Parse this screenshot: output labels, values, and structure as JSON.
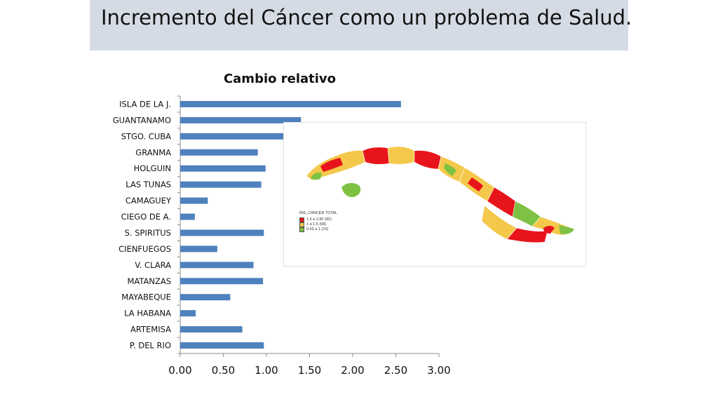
{
  "header": {
    "title": "Incremento del Cáncer como un problema de Salud."
  },
  "chart_data": {
    "type": "bar",
    "orientation": "horizontal",
    "title": "Cambio relativo",
    "xlabel": "",
    "ylabel": "",
    "xlim": [
      0,
      3
    ],
    "x_ticks": [
      "0.00",
      "0.50",
      "1.00",
      "1.50",
      "2.00",
      "2.50",
      "3.00"
    ],
    "grid": false,
    "bar_color": "#4f81bd",
    "categories": [
      "ISLA DE LA J.",
      "GUANTANAMO",
      "STGO. CUBA",
      "GRANMA",
      "HOLGUIN",
      "LAS TUNAS",
      "CAMAGUEY",
      "CIEGO DE A.",
      "S. SPIRITUS",
      "CIENFUEGOS",
      "V. CLARA",
      "MATANZAS",
      "MAYABEQUE",
      "LA HABANA",
      "ARTEMISA",
      "P. DEL RIO"
    ],
    "values": [
      2.56,
      1.4,
      1.25,
      0.9,
      0.99,
      0.94,
      0.32,
      0.17,
      0.97,
      0.43,
      0.85,
      0.96,
      0.58,
      0.18,
      0.72,
      0.97
    ]
  },
  "map": {
    "legend_title": "RIE_CANCER TOTAL",
    "legend": [
      {
        "label": "1.5 a 2.82 (82)",
        "color": "#e8141c"
      },
      {
        "label": "1 a 1.5 (68)",
        "color": "#f4c84a"
      },
      {
        "label": "0.63 a 1 (19)",
        "color": "#7dc242"
      }
    ]
  }
}
